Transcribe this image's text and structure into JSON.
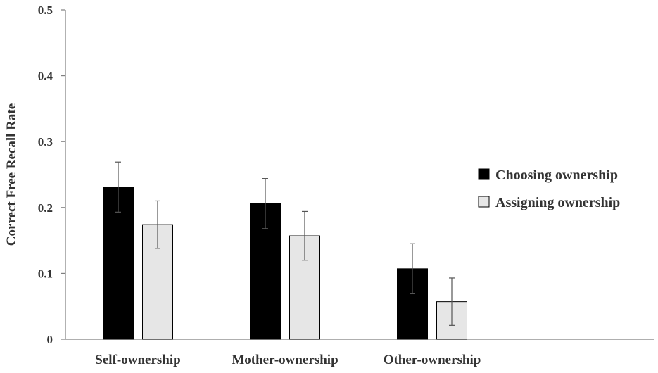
{
  "chart_data": {
    "type": "bar",
    "title": "",
    "xlabel": "",
    "ylabel": "Correct Free Recall Rate",
    "ylim": [
      0,
      0.5
    ],
    "yticks": [
      "0",
      "0.1",
      "0.2",
      "0.3",
      "0.4",
      "0.5"
    ],
    "categories": [
      "Self-ownership",
      "Mother-ownership",
      "Other-ownership"
    ],
    "series": [
      {
        "name": "Choosing ownership",
        "color": "#000000",
        "values": [
          0.231,
          0.206,
          0.107
        ],
        "error": [
          0.038,
          0.038,
          0.038
        ]
      },
      {
        "name": "Assigning ownership",
        "color": "#e6e6e6",
        "values": [
          0.174,
          0.157,
          0.057
        ],
        "error": [
          0.036,
          0.037,
          0.036
        ]
      }
    ],
    "grid": false,
    "legend_position": "right"
  }
}
